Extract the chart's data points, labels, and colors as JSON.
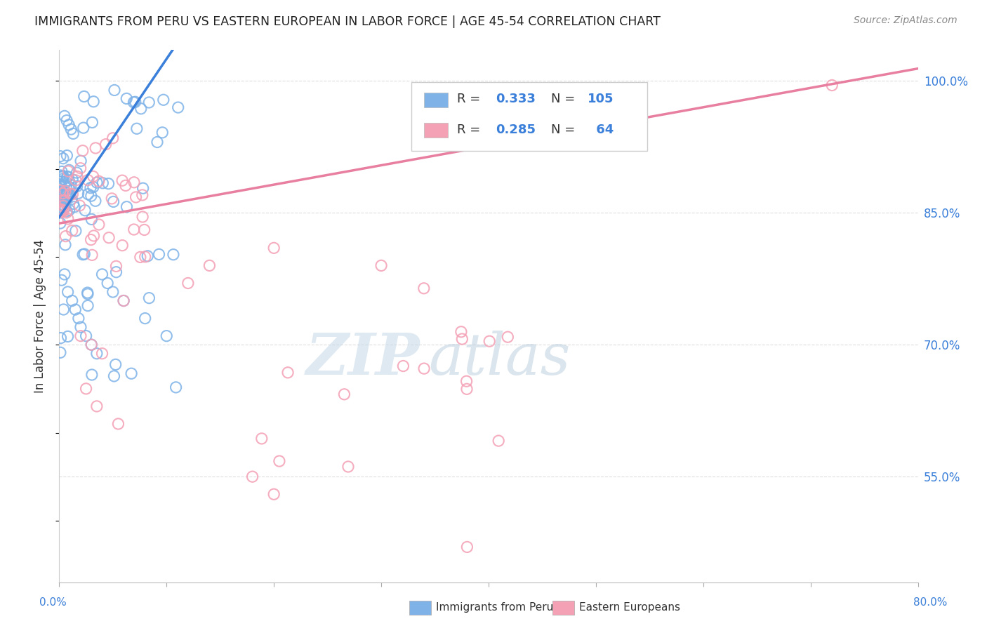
{
  "title": "IMMIGRANTS FROM PERU VS EASTERN EUROPEAN IN LABOR FORCE | AGE 45-54 CORRELATION CHART",
  "source": "Source: ZipAtlas.com",
  "ylabel": "In Labor Force | Age 45-54",
  "xmin": 0.0,
  "xmax": 0.8,
  "ymin": 0.43,
  "ymax": 1.035,
  "watermark_zip": "ZIP",
  "watermark_atlas": "atlas",
  "peru_R": 0.333,
  "peru_N": 105,
  "ee_R": 0.285,
  "ee_N": 64,
  "peru_color": "#7fb3e8",
  "ee_color": "#f4a0b5",
  "peru_line_color": "#3a7fd9",
  "ee_line_color": "#e87fa0",
  "legend_blue_color": "#3a7fd9",
  "ytick_vals": [
    0.55,
    0.7,
    0.85,
    1.0
  ],
  "ytick_labels": [
    "55.0%",
    "70.0%",
    "85.0%",
    "100.0%"
  ],
  "grid_color": "#dddddd",
  "grid_style": "--"
}
